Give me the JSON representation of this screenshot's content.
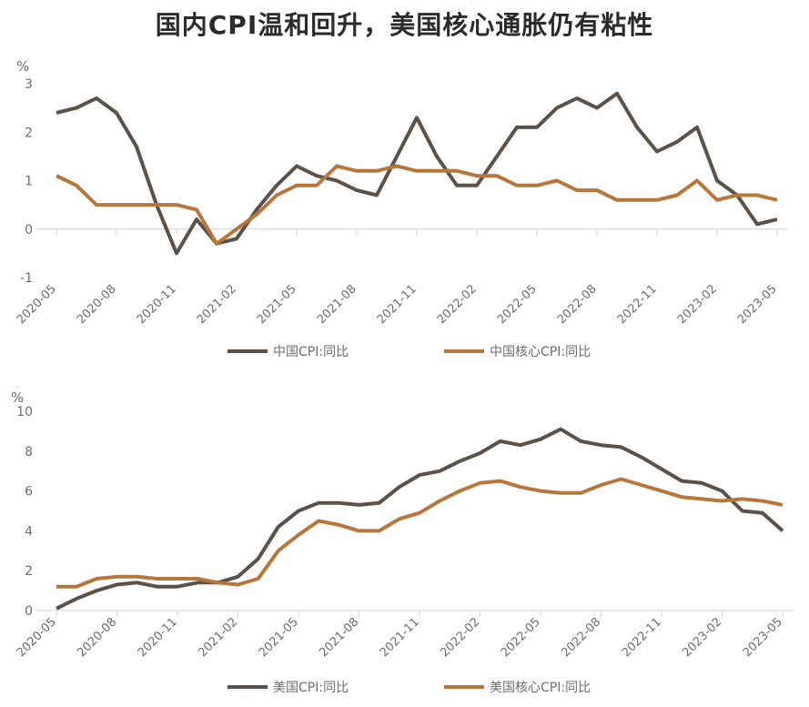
{
  "title": "国内CPI温和回升，美国核心通胀仍有粘性",
  "colors": {
    "series1": "#5c5148",
    "series2": "#b8773a",
    "axis": "#d9d9d9",
    "text": "#6d6d6d"
  },
  "chart_data": [
    {
      "type": "line",
      "unit": "%",
      "categories": [
        "2020-05",
        "2020-06",
        "2020-07",
        "2020-08",
        "2020-09",
        "2020-10",
        "2020-11",
        "2020-12",
        "2021-01",
        "2021-02",
        "2021-03",
        "2021-04",
        "2021-05",
        "2021-06",
        "2021-07",
        "2021-08",
        "2021-09",
        "2021-10",
        "2021-11",
        "2021-12",
        "2022-01",
        "2022-02",
        "2022-03",
        "2022-04",
        "2022-05",
        "2022-06",
        "2022-07",
        "2022-08",
        "2022-09",
        "2022-10",
        "2022-11",
        "2022-12",
        "2023-01",
        "2023-02",
        "2023-03",
        "2023-04",
        "2023-05"
      ],
      "tick_labels": [
        "2020-05",
        "2020-08",
        "2020-11",
        "2021-02",
        "2021-05",
        "2021-08",
        "2021-11",
        "2022-02",
        "2022-05",
        "2022-08",
        "2022-11",
        "2023-02",
        "2023-05"
      ],
      "ylim": [
        -1,
        3
      ],
      "yticks": [
        -1,
        0,
        1,
        2,
        3
      ],
      "legend_position": "bottom",
      "series": [
        {
          "name": "中国CPI:同比",
          "values": [
            2.4,
            2.5,
            2.7,
            2.4,
            1.7,
            0.5,
            -0.5,
            0.2,
            -0.3,
            -0.2,
            0.4,
            0.9,
            1.3,
            1.1,
            1.0,
            0.8,
            0.7,
            1.5,
            2.3,
            1.5,
            0.9,
            0.9,
            1.5,
            2.1,
            2.1,
            2.5,
            2.7,
            2.5,
            2.8,
            2.1,
            1.6,
            1.8,
            2.1,
            1.0,
            0.7,
            0.1,
            0.2
          ]
        },
        {
          "name": "中国核心CPI:同比",
          "values": [
            1.1,
            0.9,
            0.5,
            0.5,
            0.5,
            0.5,
            0.5,
            0.4,
            -0.3,
            0.0,
            0.3,
            0.7,
            0.9,
            0.9,
            1.3,
            1.2,
            1.2,
            1.3,
            1.2,
            1.2,
            1.2,
            1.1,
            1.1,
            0.9,
            0.9,
            1.0,
            0.8,
            0.8,
            0.6,
            0.6,
            0.6,
            0.7,
            1.0,
            0.6,
            0.7,
            0.7,
            0.6
          ]
        }
      ]
    },
    {
      "type": "line",
      "unit": "%",
      "categories": [
        "2020-05",
        "2020-06",
        "2020-07",
        "2020-08",
        "2020-09",
        "2020-10",
        "2020-11",
        "2020-12",
        "2021-01",
        "2021-02",
        "2021-03",
        "2021-04",
        "2021-05",
        "2021-06",
        "2021-07",
        "2021-08",
        "2021-09",
        "2021-10",
        "2021-11",
        "2021-12",
        "2022-01",
        "2022-02",
        "2022-03",
        "2022-04",
        "2022-05",
        "2022-06",
        "2022-07",
        "2022-08",
        "2022-09",
        "2022-10",
        "2022-11",
        "2022-12",
        "2023-01",
        "2023-02",
        "2023-03",
        "2023-04",
        "2023-05"
      ],
      "tick_labels": [
        "2020-05",
        "2020-08",
        "2020-11",
        "2021-02",
        "2021-05",
        "2021-08",
        "2021-11",
        "2022-02",
        "2022-05",
        "2022-08",
        "2022-11",
        "2023-02",
        "2023-05"
      ],
      "ylim": [
        0,
        10
      ],
      "yticks": [
        0,
        2,
        4,
        6,
        8,
        10
      ],
      "legend_position": "bottom",
      "series": [
        {
          "name": "美国CPI:同比",
          "values": [
            0.1,
            0.6,
            1.0,
            1.3,
            1.4,
            1.2,
            1.2,
            1.4,
            1.4,
            1.7,
            2.6,
            4.2,
            5.0,
            5.4,
            5.4,
            5.3,
            5.4,
            6.2,
            6.8,
            7.0,
            7.5,
            7.9,
            8.5,
            8.3,
            8.6,
            9.1,
            8.5,
            8.3,
            8.2,
            7.7,
            7.1,
            6.5,
            6.4,
            6.0,
            5.0,
            4.9,
            4.0
          ]
        },
        {
          "name": "美国核心CPI:同比",
          "values": [
            1.2,
            1.2,
            1.6,
            1.7,
            1.7,
            1.6,
            1.6,
            1.6,
            1.4,
            1.3,
            1.6,
            3.0,
            3.8,
            4.5,
            4.3,
            4.0,
            4.0,
            4.6,
            4.9,
            5.5,
            6.0,
            6.4,
            6.5,
            6.2,
            6.0,
            5.9,
            5.9,
            6.3,
            6.6,
            6.3,
            6.0,
            5.7,
            5.6,
            5.5,
            5.6,
            5.5,
            5.3
          ]
        }
      ]
    }
  ]
}
